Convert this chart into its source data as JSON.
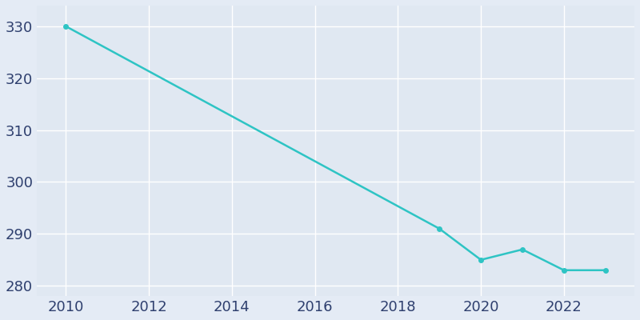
{
  "years": [
    2010,
    2019,
    2020,
    2021,
    2022,
    2023
  ],
  "population": [
    330,
    291,
    285,
    287,
    283,
    283
  ],
  "line_color": "#2EC4C4",
  "marker": "o",
  "marker_size": 4,
  "line_width": 1.8,
  "bg_color": "#E4EBF5",
  "plot_bg_color": "#E0E8F2",
  "grid_color": "#FFFFFF",
  "tick_color": "#2E3F6E",
  "xlim": [
    2009.3,
    2023.7
  ],
  "ylim": [
    278,
    334
  ],
  "xticks": [
    2010,
    2012,
    2014,
    2016,
    2018,
    2020,
    2022
  ],
  "yticks": [
    280,
    290,
    300,
    310,
    320,
    330
  ],
  "tick_fontsize": 13
}
